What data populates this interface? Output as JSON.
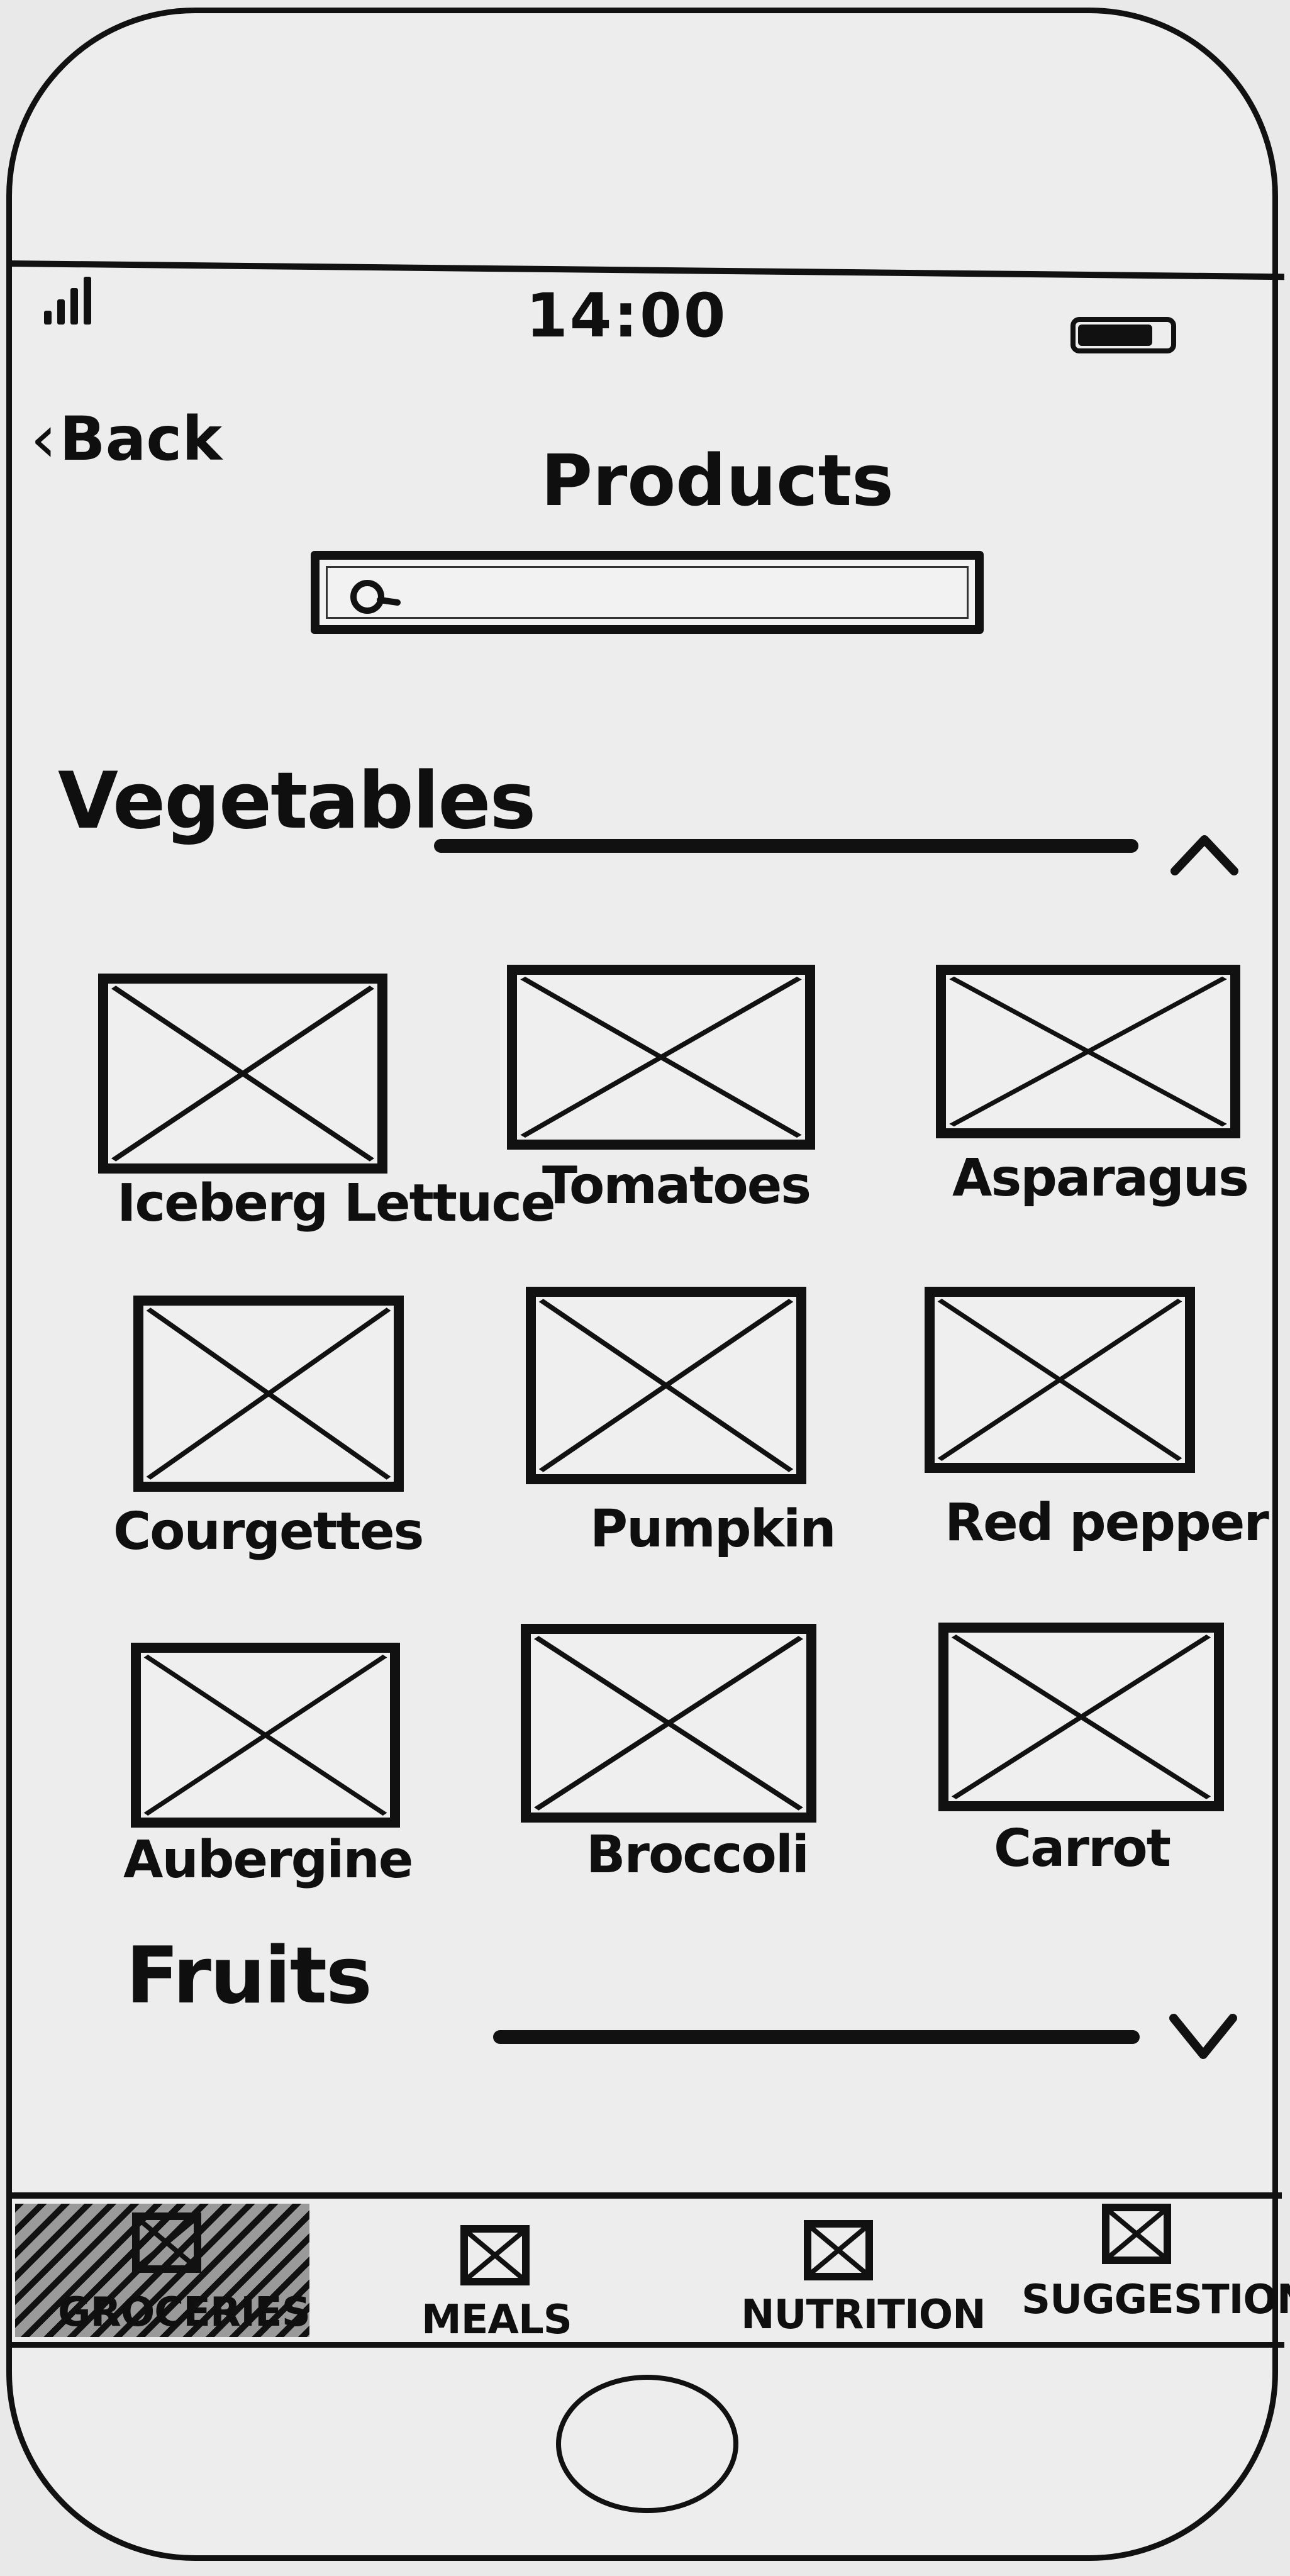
{
  "status_bar": {
    "time": "14:00"
  },
  "nav": {
    "back_label": "Back",
    "title": "Products"
  },
  "search": {
    "value": "",
    "placeholder": ""
  },
  "sections": [
    {
      "label": "Vegetables",
      "toggle": "^",
      "expanded": true
    },
    {
      "label": "Fruits",
      "toggle": "v",
      "expanded": false
    }
  ],
  "vegetables": [
    "Iceberg Lettuce",
    "Tomatoes",
    "Asparagus",
    "Courgettes",
    "Pumpkin",
    "Red pepper",
    "Aubergine",
    "Broccoli",
    "Carrot"
  ],
  "tabs": [
    {
      "label": "GROCERIES",
      "active": true
    },
    {
      "label": "MEALS",
      "active": false
    },
    {
      "label": "NUTRITION",
      "active": false
    },
    {
      "label": "SUGGESTIONS",
      "active": false
    }
  ],
  "icons": {
    "signal": "signal-icon",
    "battery": "battery-icon",
    "search": "search-icon",
    "image_placeholder": "image-placeholder-icon",
    "collapse": "chevron-up-icon",
    "expand": "chevron-down-icon"
  }
}
